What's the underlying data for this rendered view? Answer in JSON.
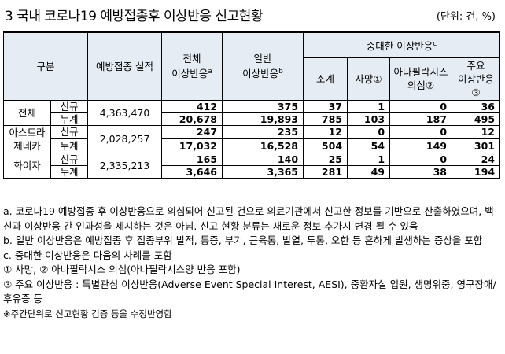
{
  "title": "3  국내 코로나19 예방접종후 이상반응 신고현황",
  "unit": "(단위: 건, %)",
  "headers": {
    "group": "구분",
    "vaccinated": "예방접종 실적",
    "total_ae_1": "전체",
    "total_ae_2": "이상반응",
    "total_ae_sup": "a",
    "general_ae_1": "일반",
    "general_ae_2": "이상반응",
    "general_ae_sup": "b",
    "serious": "중대한 이상반응",
    "serious_sup": "c",
    "subtotal": "소계",
    "death": "사망①",
    "anaphylaxis_1": "아나필락시스",
    "anaphylaxis_2": "의심②",
    "major_1": "주요",
    "major_2": "이상반응",
    "major_3": "③"
  },
  "rows": [
    {
      "vaccine": "전체",
      "vaccine_2": "",
      "vaccinated": "4,363,470",
      "new": {
        "label": "신규",
        "total": "412",
        "general": "375",
        "subtotal": "37",
        "death": "1",
        "anaphylaxis": "0",
        "major": "36"
      },
      "cum": {
        "label": "누계",
        "total": "20,678",
        "general": "19,893",
        "subtotal": "785",
        "death": "103",
        "anaphylaxis": "187",
        "major": "495"
      }
    },
    {
      "vaccine": "아스트라",
      "vaccine_2": "제네카",
      "vaccinated": "2,028,257",
      "new": {
        "label": "신규",
        "total": "247",
        "general": "235",
        "subtotal": "12",
        "death": "0",
        "anaphylaxis": "0",
        "major": "12"
      },
      "cum": {
        "label": "누계",
        "total": "17,032",
        "general": "16,528",
        "subtotal": "504",
        "death": "54",
        "anaphylaxis": "149",
        "major": "301"
      }
    },
    {
      "vaccine": "화이자",
      "vaccine_2": "",
      "vaccinated": "2,335,213",
      "new": {
        "label": "신규",
        "total": "165",
        "general": "140",
        "subtotal": "25",
        "death": "1",
        "anaphylaxis": "0",
        "major": "24"
      },
      "cum": {
        "label": "누계",
        "total": "3,646",
        "general": "3,365",
        "subtotal": "281",
        "death": "49",
        "anaphylaxis": "38",
        "major": "194"
      }
    }
  ],
  "notes": {
    "a": "a. 코로나19 예방접종 후 이상반응으로 의심되어 신고된 건으로 의료기관에서 신고한 정보를 기반으로 산출하였으며, 백신과 이상반응 간 인과성을 제시하는 것은 아님. 신고 현황 분류는 새로운 정보 추가시 변경 될 수 있음",
    "b": "b. 일반 이상반응은 예방접종 후 접종부위 발적, 통증, 부기, 근육통, 발열, 두통, 오한 등 흔하게 발생하는 증상을 포함",
    "c": "c. 중대한 이상반응은 다음의 사례를 포함",
    "c1": "① 사망, ② 아나필락시스 의심(아나필락시스양 반응 포함)",
    "c3": "③ 주요 이상반응 : 특별관심 이상반응(Adverse Event Special Interest, AESI), 중환자실 입원, 생명위중, 영구장애/후유증 등",
    "footer": "※주간단위로 신고현황 검증 등을 수정반영함"
  }
}
